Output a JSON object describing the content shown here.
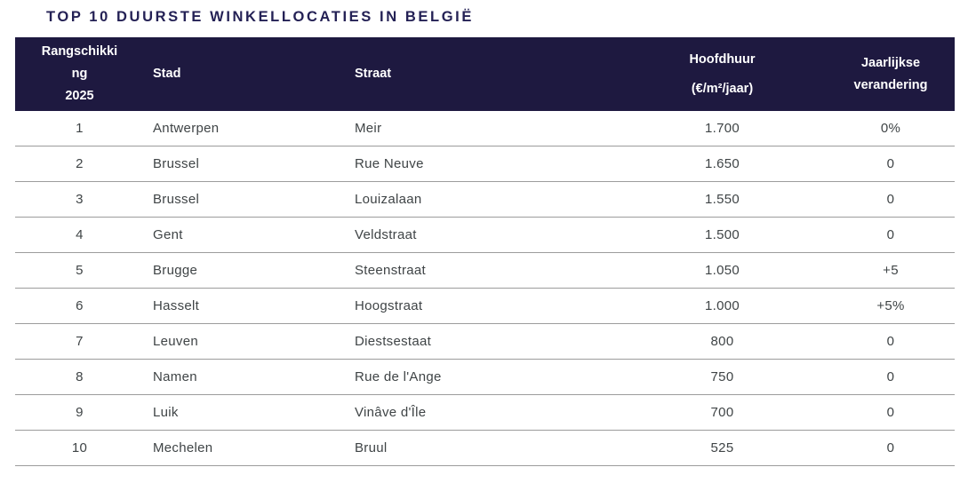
{
  "title": "TOP 10 DUURSTE WINKELLOCATIES IN BELGIË",
  "colors": {
    "header_bg": "#1e1940",
    "header_text": "#ffffff",
    "title_text": "#242155",
    "body_text": "#3f4446",
    "divider": "#9c9c9c"
  },
  "table": {
    "columns": [
      {
        "id": "rank",
        "header_lines": [
          "Rangschikki",
          "ng",
          "2025"
        ]
      },
      {
        "id": "stad",
        "header_lines": [
          "Stad"
        ]
      },
      {
        "id": "straat",
        "header_lines": [
          "Straat"
        ]
      },
      {
        "id": "hoofdhuur",
        "header_lines": [
          "Hoofdhuur",
          "(€/m²/jaar)"
        ]
      },
      {
        "id": "ver",
        "header_lines": [
          "Jaarlijkse",
          "verandering"
        ]
      }
    ],
    "rows": [
      {
        "rank": "1",
        "stad": "Antwerpen",
        "straat": "Meir",
        "hoofdhuur": "1.700",
        "ver": "0%"
      },
      {
        "rank": "2",
        "stad": "Brussel",
        "straat": "Rue Neuve",
        "hoofdhuur": "1.650",
        "ver": "0"
      },
      {
        "rank": "3",
        "stad": "Brussel",
        "straat": "Louizalaan",
        "hoofdhuur": "1.550",
        "ver": "0"
      },
      {
        "rank": "4",
        "stad": "Gent",
        "straat": "Veldstraat",
        "hoofdhuur": "1.500",
        "ver": "0"
      },
      {
        "rank": "5",
        "stad": "Brugge",
        "straat": "Steenstraat",
        "hoofdhuur": "1.050",
        "ver": "+5"
      },
      {
        "rank": "6",
        "stad": "Hasselt",
        "straat": "Hoogstraat",
        "hoofdhuur": "1.000",
        "ver": "+5%"
      },
      {
        "rank": "7",
        "stad": "Leuven",
        "straat": "Diestsestaat",
        "hoofdhuur": "800",
        "ver": "0"
      },
      {
        "rank": "8",
        "stad": "Namen",
        "straat": "Rue de l'Ange",
        "hoofdhuur": "750",
        "ver": "0"
      },
      {
        "rank": "9",
        "stad": "Luik",
        "straat": "Vinâve d'Île",
        "hoofdhuur": "700",
        "ver": "0"
      },
      {
        "rank": "10",
        "stad": "Mechelen",
        "straat": "Bruul",
        "hoofdhuur": "525",
        "ver": "0"
      }
    ]
  }
}
